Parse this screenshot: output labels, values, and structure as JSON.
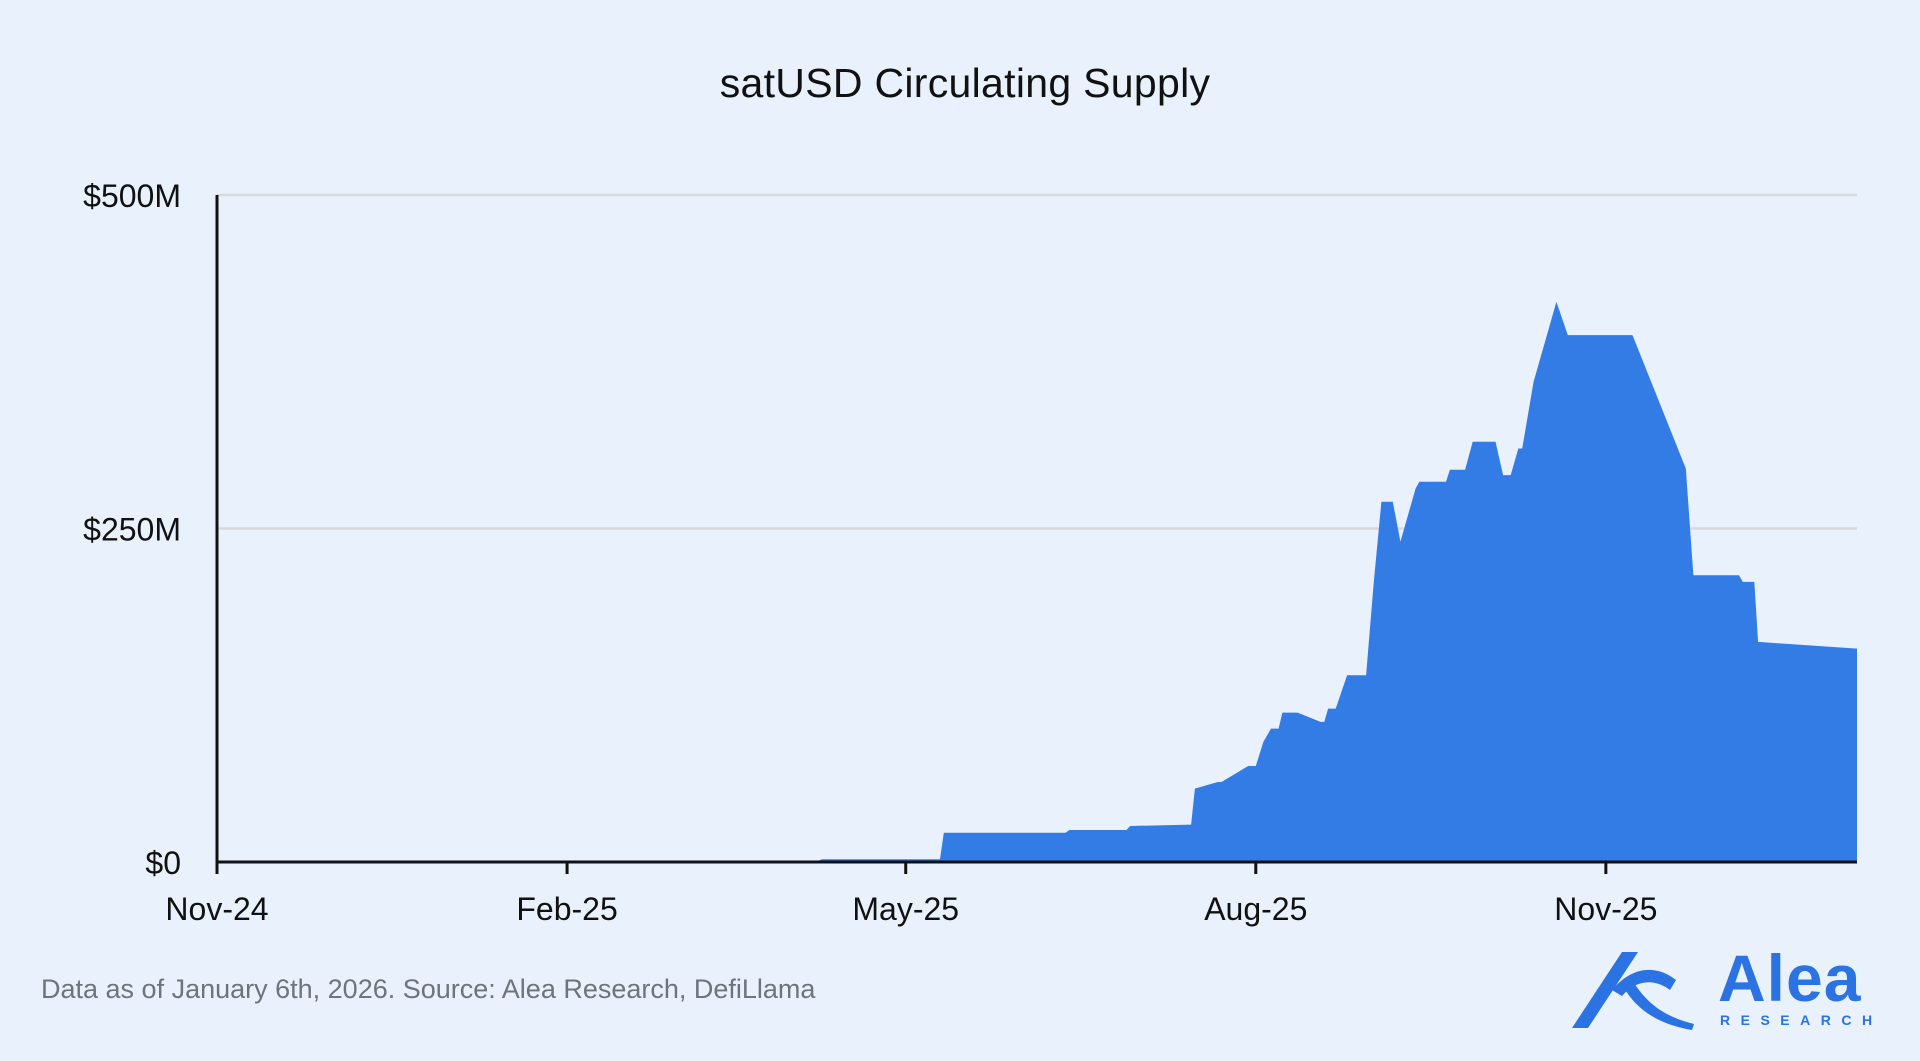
{
  "chart_data": {
    "type": "area",
    "title": "satUSD Circulating Supply",
    "xlabel": "",
    "ylabel": "",
    "y_tick_labels": [
      "$0",
      "$250M",
      "$500M"
    ],
    "y_ticks": [
      0,
      250,
      500
    ],
    "ylim": [
      0,
      500
    ],
    "y_unit": "$M",
    "x_tick_labels": [
      "Nov-24",
      "Feb-25",
      "May-25",
      "Aug-25",
      "Nov-25"
    ],
    "x_ticks": [
      "2024-11-01",
      "2025-02-01",
      "2025-05-01",
      "2025-08-01",
      "2025-11-01"
    ],
    "xlim": [
      "2024-11-01",
      "2026-01-06"
    ],
    "grid": "horizontal",
    "color": "#337ce6",
    "series": [
      {
        "x": [
          "2024-11-01",
          "2024-11-20",
          "2025-02-01",
          "2025-04-08",
          "2025-04-09",
          "2025-05-01",
          "2025-05-10",
          "2025-05-11",
          "2025-06-01",
          "2025-06-12",
          "2025-06-13",
          "2025-06-28",
          "2025-06-29",
          "2025-07-15",
          "2025-07-16",
          "2025-07-22",
          "2025-07-23",
          "2025-07-30",
          "2025-08-01",
          "2025-08-03",
          "2025-08-05",
          "2025-08-06",
          "2025-08-07",
          "2025-08-08",
          "2025-08-10",
          "2025-08-12",
          "2025-08-18",
          "2025-08-19",
          "2025-08-20",
          "2025-08-22",
          "2025-08-25",
          "2025-08-30",
          "2025-09-01",
          "2025-09-03",
          "2025-09-06",
          "2025-09-08",
          "2025-09-12",
          "2025-09-13",
          "2025-09-20",
          "2025-09-21",
          "2025-09-25",
          "2025-09-27",
          "2025-10-03",
          "2025-10-05",
          "2025-10-07",
          "2025-10-09",
          "2025-10-10",
          "2025-10-13",
          "2025-10-18",
          "2025-10-19",
          "2025-10-22",
          "2025-10-30",
          "2025-11-08",
          "2025-11-22",
          "2025-11-24",
          "2025-12-06",
          "2025-12-07",
          "2025-12-10",
          "2025-12-11",
          "2026-01-06"
        ],
        "values": [
          0,
          1,
          1,
          1,
          2,
          2,
          2,
          22,
          22,
          22,
          24,
          24,
          27,
          28,
          55,
          60,
          60,
          72,
          72,
          90,
          100,
          100,
          100,
          112,
          112,
          112,
          105,
          105,
          115,
          115,
          140,
          140,
          210,
          270,
          270,
          240,
          280,
          285,
          285,
          294,
          294,
          315,
          315,
          290,
          290,
          310,
          310,
          360,
          410,
          420,
          395,
          395,
          395,
          295,
          215,
          215,
          210,
          210,
          165,
          160
        ]
      }
    ]
  },
  "footnote": "Data as of January 6th, 2026. Source: Alea Research, DefiLlama",
  "logo": {
    "word": "Alea",
    "sub": "RESEARCH"
  }
}
